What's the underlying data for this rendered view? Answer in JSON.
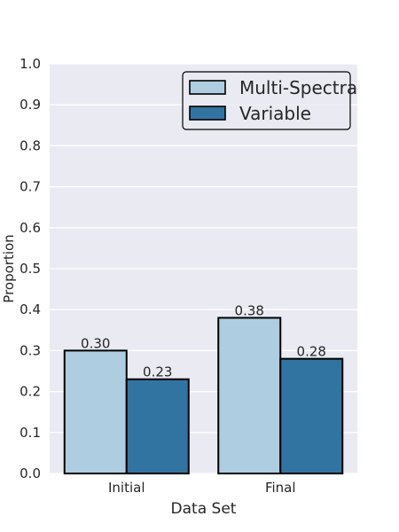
{
  "chart_data": {
    "type": "bar",
    "categories": [
      "Initial",
      "Final"
    ],
    "series": [
      {
        "name": "Multi-Spectra",
        "values": [
          0.3,
          0.38
        ],
        "labels": [
          "0.30",
          "0.38"
        ],
        "color": "#aecde1"
      },
      {
        "name": "Variable",
        "values": [
          0.23,
          0.28
        ],
        "labels": [
          "0.23",
          "0.28"
        ],
        "color": "#3274a1"
      }
    ],
    "title": "",
    "xlabel": "Data Set",
    "ylabel": "Proportion",
    "ylim": [
      0,
      1.0
    ],
    "yticks": [
      "0.0",
      "0.1",
      "0.2",
      "0.3",
      "0.4",
      "0.5",
      "0.6",
      "0.7",
      "0.8",
      "0.9",
      "1.0"
    ],
    "grid": true,
    "legend_position": "top-right",
    "background_color": "#eaeaf2",
    "edge_color": "#000000"
  }
}
